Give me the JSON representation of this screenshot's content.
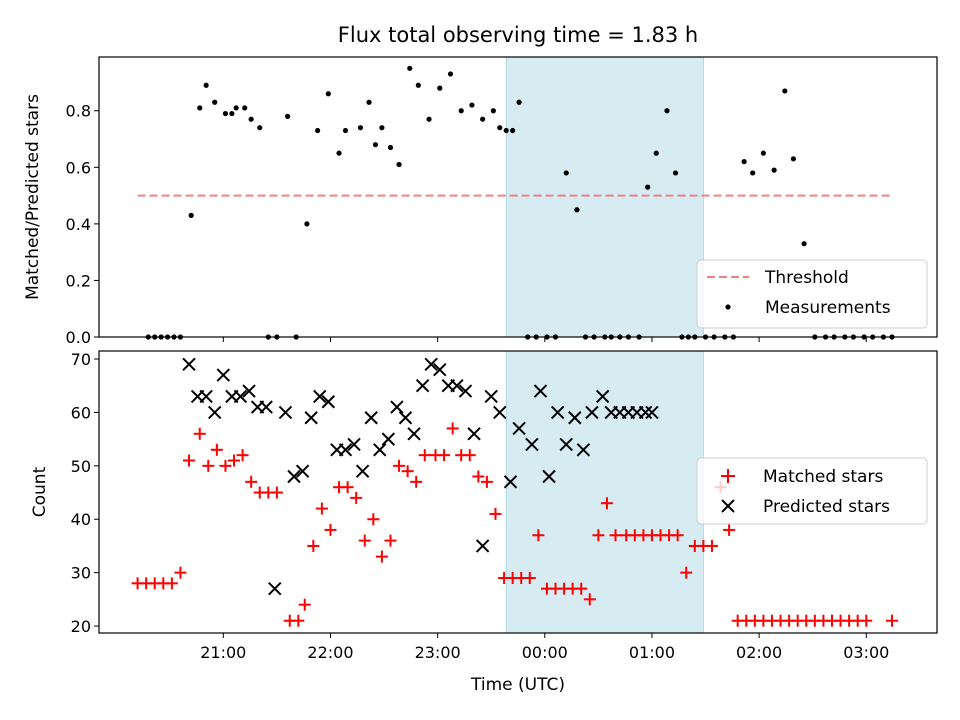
{
  "title": "Flux total observing time = 1.83 h",
  "colors": {
    "threshold": "#f08080",
    "matched": "#ff0000",
    "predicted": "#000000",
    "measurement": "#000000",
    "shading": "#add8e6"
  },
  "chart_data": [
    {
      "type": "scatter",
      "ylabel": "Matched/Predicted stars",
      "xlim": [
        20.32,
        24.23
      ],
      "ylim": [
        0,
        0.99
      ],
      "yticks": [
        0,
        0.2,
        0.4,
        0.6,
        0.8
      ],
      "ytick_labels": [
        "0.0",
        "0.2",
        "0.4",
        "0.6",
        "0.8"
      ],
      "shaded_span": [
        22.22,
        23.14
      ],
      "legend": {
        "position": "lower-right",
        "entries": [
          "Threshold",
          "Measurements"
        ]
      },
      "threshold": {
        "name": "Threshold",
        "value": 0.5,
        "x_range": [
          20.5,
          24.02
        ]
      },
      "measurements": {
        "name": "Measurements",
        "x": [
          20.55,
          20.58,
          20.61,
          20.64,
          20.67,
          20.7,
          20.75,
          20.79,
          20.82,
          20.86,
          20.91,
          20.94,
          20.96,
          21.0,
          21.03,
          21.07,
          21.11,
          21.15,
          21.2,
          21.24,
          21.29,
          21.34,
          21.39,
          21.44,
          21.47,
          21.54,
          21.58,
          21.61,
          21.64,
          21.68,
          21.72,
          21.77,
          21.81,
          21.86,
          21.91,
          21.96,
          22.01,
          22.06,
          22.11,
          22.16,
          22.19,
          22.22,
          22.25,
          22.28,
          22.32,
          22.36,
          22.41,
          22.45,
          22.5,
          22.55,
          22.59,
          22.63,
          22.68,
          22.71,
          22.75,
          22.79,
          22.84,
          22.88,
          22.92,
          22.97,
          23.01,
          23.04,
          23.07,
          23.1,
          23.15,
          23.19,
          23.24,
          23.28,
          23.33,
          23.37,
          23.42,
          23.47,
          23.52,
          23.56,
          23.61,
          23.66,
          23.71,
          23.75,
          23.8,
          23.84,
          23.89,
          23.93,
          23.98,
          24.02
        ],
        "y": [
          0.0,
          0.0,
          0.0,
          0.0,
          0.0,
          0.0,
          0.43,
          0.81,
          0.89,
          0.83,
          0.79,
          0.79,
          0.81,
          0.81,
          0.77,
          0.74,
          0.0,
          0.0,
          0.78,
          0.0,
          0.4,
          0.73,
          0.86,
          0.65,
          0.73,
          0.74,
          0.83,
          0.68,
          0.74,
          0.67,
          0.61,
          0.95,
          0.89,
          0.77,
          0.88,
          0.93,
          0.8,
          0.82,
          0.77,
          0.8,
          0.74,
          0.73,
          0.73,
          0.83,
          0.0,
          0.0,
          0.0,
          0.0,
          0.58,
          0.45,
          0.0,
          0.0,
          0.0,
          0.0,
          0.0,
          0.0,
          0.0,
          0.53,
          0.65,
          0.8,
          0.58,
          0.0,
          0.0,
          0.0,
          0.0,
          0.0,
          0.0,
          0.0,
          0.62,
          0.58,
          0.65,
          0.59,
          0.87,
          0.63,
          0.33,
          0.0,
          0.0,
          0.0,
          0.0,
          0.0,
          0.0,
          0.0,
          0.0,
          0.0
        ]
      }
    },
    {
      "type": "scatter",
      "xlabel": "Time (UTC)",
      "ylabel": "Count",
      "xlim": [
        20.32,
        24.23
      ],
      "ylim": [
        18.7,
        71.5
      ],
      "yticks": [
        20,
        30,
        40,
        50,
        60,
        70
      ],
      "xticks": [
        20.9,
        21.4,
        21.9,
        22.4,
        22.9,
        23.4,
        23.9
      ],
      "xtick_labels": [
        "21:00",
        "22:00",
        "23:00",
        "00:00",
        "01:00",
        "02:00",
        "03:00"
      ],
      "shaded_span": [
        22.22,
        23.14
      ],
      "legend": {
        "position": "center-right",
        "entries": [
          "Matched stars",
          "Predicted stars"
        ]
      },
      "series": [
        {
          "name": "Matched stars",
          "marker": "plus",
          "x": [
            20.5,
            20.54,
            20.58,
            20.62,
            20.66,
            20.7,
            20.74,
            20.79,
            20.83,
            20.87,
            20.91,
            20.95,
            20.99,
            21.03,
            21.07,
            21.11,
            21.15,
            21.21,
            21.25,
            21.28,
            21.32,
            21.36,
            21.4,
            21.44,
            21.48,
            21.52,
            21.56,
            21.6,
            21.64,
            21.68,
            21.72,
            21.76,
            21.8,
            21.84,
            21.89,
            21.93,
            21.97,
            22.01,
            22.05,
            22.09,
            22.13,
            22.17,
            22.21,
            22.25,
            22.29,
            22.33,
            22.37,
            22.41,
            22.45,
            22.49,
            22.53,
            22.57,
            22.61,
            22.65,
            22.69,
            22.73,
            22.78,
            22.82,
            22.86,
            22.9,
            22.94,
            22.98,
            23.02,
            23.06,
            23.1,
            23.14,
            23.18,
            23.22,
            23.26,
            23.3,
            23.34,
            23.38,
            23.42,
            23.46,
            23.5,
            23.54,
            23.58,
            23.62,
            23.66,
            23.7,
            23.74,
            23.78,
            23.82,
            23.86,
            23.9,
            24.02
          ],
          "y": [
            28,
            28,
            28,
            28,
            28,
            30,
            51,
            56,
            50,
            53,
            50,
            51,
            52,
            47,
            45,
            45,
            45,
            21,
            21,
            24,
            35,
            42,
            38,
            46,
            46,
            44,
            36,
            40,
            33,
            36,
            50,
            49,
            47,
            52,
            52,
            52,
            57,
            52,
            52,
            48,
            47,
            41,
            29,
            29,
            29,
            29,
            37,
            27,
            27,
            27,
            27,
            27,
            25,
            37,
            43,
            37,
            37,
            37,
            37,
            37,
            37,
            37,
            37,
            30,
            35,
            35,
            35,
            46,
            38,
            21,
            21,
            21,
            21,
            21,
            21,
            21,
            21,
            21,
            21,
            21,
            21,
            21,
            21,
            21,
            21,
            21
          ]
        },
        {
          "name": "Predicted stars",
          "marker": "x",
          "x": [
            20.74,
            20.78,
            20.82,
            20.86,
            20.9,
            20.94,
            20.98,
            21.02,
            21.06,
            21.1,
            21.14,
            21.19,
            21.23,
            21.27,
            21.31,
            21.35,
            21.39,
            21.43,
            21.47,
            21.51,
            21.55,
            21.59,
            21.63,
            21.67,
            21.71,
            21.75,
            21.79,
            21.83,
            21.87,
            21.91,
            21.95,
            21.99,
            22.03,
            22.07,
            22.11,
            22.15,
            22.19,
            22.24,
            22.28,
            22.34,
            22.38,
            22.42,
            22.46,
            22.5,
            22.54,
            22.58,
            22.62,
            22.67,
            22.71,
            22.75,
            22.79,
            22.83,
            22.87,
            22.9
          ],
          "y": [
            69,
            63,
            63,
            60,
            67,
            63,
            63,
            64,
            61,
            61,
            27,
            60,
            48,
            49,
            59,
            63,
            62,
            53,
            53,
            54,
            49,
            59,
            53,
            55,
            61,
            59,
            56,
            65,
            69,
            68,
            65,
            65,
            64,
            56,
            35,
            63,
            60,
            47,
            57,
            54,
            64,
            48,
            60,
            54,
            59,
            53,
            60,
            63,
            60,
            60,
            60,
            60,
            60,
            60
          ]
        }
      ]
    }
  ]
}
